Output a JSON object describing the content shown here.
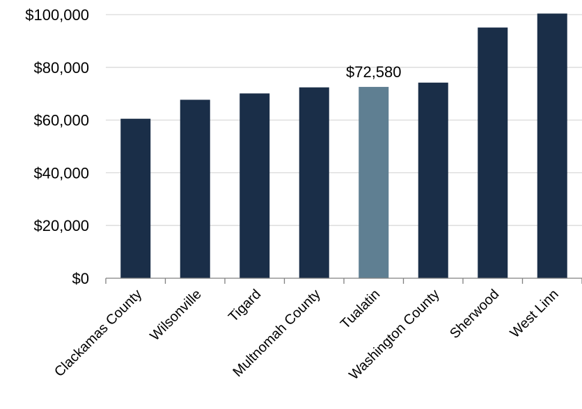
{
  "chart_data": {
    "type": "bar",
    "title": "",
    "xlabel": "",
    "ylabel": "",
    "categories": [
      "Clackamas County",
      "Wilsonville",
      "Tigard",
      "Multnomah County",
      "Tualatin",
      "Washington County",
      "Sherwood",
      "West Linn"
    ],
    "values": [
      60500,
      67700,
      70100,
      72400,
      72580,
      74200,
      95100,
      100400
    ],
    "ylim": [
      0,
      100000
    ],
    "yticks": [
      0,
      20000,
      40000,
      60000,
      80000,
      100000
    ],
    "ytick_labels": [
      "$0",
      "$20,000",
      "$40,000",
      "$60,000",
      "$80,000",
      "$100,000"
    ],
    "data_labels": [
      {
        "category": "Tualatin",
        "text": "$72,580"
      }
    ],
    "highlight_category": "Tualatin",
    "colors": {
      "bar": "#1a2e48",
      "highlight": "#5f7f92",
      "grid": "#d9d9d9",
      "axis": "#808080"
    },
    "grid": true,
    "legend": "none"
  }
}
